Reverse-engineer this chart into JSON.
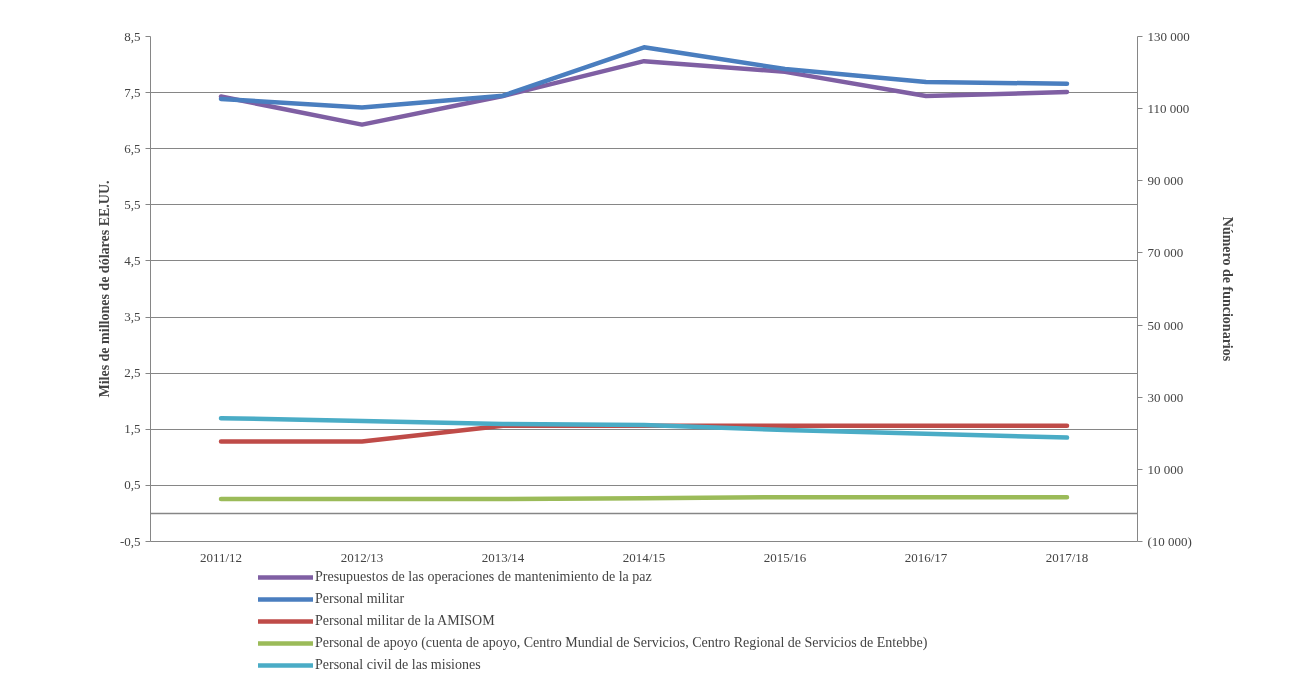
{
  "chart_data": {
    "type": "line",
    "ylabel": "Miles de millones de dólares EE.UU.",
    "y2label": "Número de funcionarios",
    "categories": [
      "2011/12",
      "2012/13",
      "2013/14",
      "2014/15",
      "2015/16",
      "2016/17",
      "2017/18"
    ],
    "series": [
      {
        "name": "Presupuestos de las operaciones de mantenimiento de la paz",
        "color": "#7f5fa3",
        "values": [
          7.43,
          6.93,
          7.44,
          8.06,
          7.87,
          7.44,
          7.51
        ]
      },
      {
        "name": "Personal militar",
        "color": "#4a7ebf",
        "axis": "y2",
        "values": [
          112700,
          110300,
          113600,
          127000,
          121000,
          117400,
          116900
        ]
      },
      {
        "name": "Personal militar de la AMISOM",
        "color": "#bf4b48",
        "axis": "y2",
        "values": [
          17700,
          17700,
          22100,
          22100,
          22100,
          22100,
          22100
        ]
      },
      {
        "name": "Personal de apoyo (cuenta de apoyo, Centro Mundial de Servicios, Centro Regional de Servicios de Entebbe)",
        "color": "#9bbb59",
        "axis": "y2",
        "values": [
          1800,
          1800,
          1800,
          2000,
          2300,
          2300,
          2300
        ]
      },
      {
        "name": "Personal civil de las misiones",
        "color": "#4aacc6",
        "axis": "y2",
        "values": [
          24200,
          23400,
          22600,
          22300,
          20900,
          19900,
          18800
        ]
      }
    ],
    "ylim": [
      -0.5,
      8.5
    ],
    "yticks": [
      {
        "value": -0.5,
        "label": "-0,5"
      },
      {
        "value": 0.5,
        "label": "0,5"
      },
      {
        "value": 1.5,
        "label": "1,5"
      },
      {
        "value": 2.5,
        "label": "2,5"
      },
      {
        "value": 3.5,
        "label": "3,5"
      },
      {
        "value": 4.5,
        "label": "4,5"
      },
      {
        "value": 5.5,
        "label": "5,5"
      },
      {
        "value": 6.5,
        "label": "6,5"
      },
      {
        "value": 7.5,
        "label": "7,5"
      },
      {
        "value": 8.5,
        "label": "8,5"
      }
    ],
    "y2lim": [
      -10000,
      130000
    ],
    "y2ticks": [
      {
        "value": -10000,
        "label": "(10 000)"
      },
      {
        "value": 10000,
        "label": "10 000"
      },
      {
        "value": 30000,
        "label": "30 000"
      },
      {
        "value": 50000,
        "label": "50 000"
      },
      {
        "value": 70000,
        "label": "70 000"
      },
      {
        "value": 90000,
        "label": "90 000"
      },
      {
        "value": 110000,
        "label": "110 000"
      },
      {
        "value": 130000,
        "label": "130 000"
      }
    ],
    "ref_lines": [
      {
        "axis": "y",
        "value": 0,
        "color": "#868686"
      }
    ],
    "grid": "y",
    "legend": "bottom",
    "marker": "none",
    "line_style": "solid"
  }
}
